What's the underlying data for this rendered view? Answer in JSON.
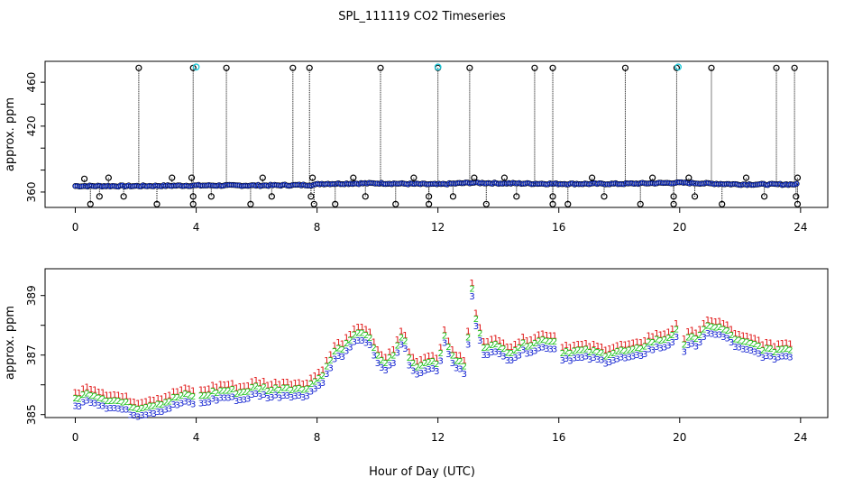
{
  "title": "SPL_111119  CO2 Timeseries",
  "colors": {
    "axis": "#000000",
    "raw_outer": "#000000",
    "raw_inner": "#1f3fe0",
    "flag": "#22c8d8",
    "series1": "#e01010",
    "series2": "#18c018",
    "series3": "#1020d0"
  },
  "chart_data": [
    {
      "type": "scatter",
      "name": "top-panel",
      "title": "SPL_111119  CO2 Timeseries",
      "xlabel": "",
      "ylabel": "approx. ppm",
      "xlim": [
        -1,
        24.9
      ],
      "ylim": [
        346,
        479
      ],
      "x_ticks": [
        0,
        4,
        8,
        12,
        16,
        20,
        24
      ],
      "y_ticks": [
        360,
        380,
        400,
        420,
        440,
        460
      ],
      "y_tick_labels": [
        "360",
        "420",
        "460"
      ],
      "x_tick_labels": [
        "0",
        "4",
        "8",
        "12",
        "16",
        "20",
        "24"
      ],
      "base_series": {
        "x": [
          0,
          2,
          4,
          6,
          7.9,
          8.1,
          10,
          12,
          13.1,
          14,
          16,
          18,
          20,
          22,
          24
        ],
        "y": [
          365.5,
          365.5,
          366,
          366,
          366.5,
          367.5,
          368,
          367,
          368.5,
          368,
          367.5,
          367.5,
          368.5,
          367,
          367
        ]
      },
      "high_spikes_x": [
        2.1,
        3.9,
        5.0,
        7.2,
        7.75,
        10.1,
        12.0,
        13.05,
        15.2,
        15.8,
        18.2,
        19.9,
        21.05,
        23.2,
        23.8
      ],
      "high_spike_value": 473,
      "flagged_x": [
        4.0,
        12.0,
        19.95
      ],
      "low_outliers": {
        "x": [
          0.5,
          2.7,
          3.9,
          5.8,
          7.9,
          8.6,
          10.6,
          11.7,
          13.6,
          15.8,
          16.3,
          18.7,
          19.8,
          21.4,
          23.9
        ],
        "y": [
          349,
          349,
          349,
          349,
          349,
          349,
          349,
          349,
          349,
          349,
          349,
          349,
          349,
          349,
          349
        ]
      },
      "mid_outliers": {
        "x": [
          0.8,
          1.6,
          3.9,
          4.5,
          6.5,
          7.8,
          9.6,
          11.7,
          12.5,
          14.6,
          15.8,
          17.5,
          19.8,
          20.5,
          22.8,
          23.85
        ],
        "y": [
          356,
          356,
          356,
          356,
          356,
          356,
          356,
          356,
          356,
          356,
          356,
          356,
          356,
          356,
          356,
          356
        ]
      },
      "up_outliers": {
        "x": [
          0.3,
          1.1,
          3.2,
          3.85,
          6.2,
          7.85,
          9.2,
          11.2,
          13.2,
          14.2,
          17.1,
          19.1,
          20.3,
          22.2,
          23.9
        ],
        "y": [
          372,
          373,
          373,
          373,
          373,
          373,
          373,
          373,
          373,
          373,
          373,
          373,
          373,
          373,
          373
        ]
      }
    },
    {
      "type": "scatter",
      "name": "bottom-panel",
      "xlabel": "Hour of Day (UTC)",
      "ylabel": "approx. ppm",
      "xlim": [
        -1,
        24.9
      ],
      "ylim": [
        384.9,
        389.9
      ],
      "x_ticks": [
        0,
        4,
        8,
        12,
        16,
        20,
        24
      ],
      "x_tick_labels": [
        "0",
        "4",
        "8",
        "12",
        "16",
        "20",
        "24"
      ],
      "y_ticks": [
        385,
        386,
        387,
        388,
        389
      ],
      "y_tick_labels": [
        "385",
        "387",
        "389"
      ],
      "symbols": [
        "1",
        "2",
        "3"
      ],
      "series": [
        {
          "name": "3",
          "x": [
            0,
            0.5,
            1,
            1.5,
            2,
            2.5,
            3,
            3.5,
            3.95,
            4.0,
            4.5,
            5,
            5.5,
            6,
            6.5,
            7,
            7.5,
            7.95,
            8.0,
            8.3,
            8.6,
            9,
            9.4,
            9.7,
            10,
            10.3,
            10.6,
            10.85,
            11.1,
            11.4,
            11.7,
            12.0,
            12.2,
            12.4,
            12.7,
            12.95,
            13.1,
            13.3,
            13.55,
            13.8,
            14,
            14.4,
            14.8,
            15.2,
            15.6,
            15.95,
            16.0,
            16.5,
            17,
            17.5,
            18,
            18.5,
            19,
            19.5,
            19.95,
            20.0,
            20.3,
            20.6,
            21,
            21.5,
            22,
            22.5,
            23,
            23.5,
            23.7
          ],
          "y": [
            385.3,
            385.5,
            385.3,
            385.2,
            385.0,
            385.1,
            385.2,
            385.4,
            385.4,
            385.3,
            385.5,
            385.6,
            385.5,
            385.7,
            385.6,
            385.7,
            385.6,
            385.9,
            385.9,
            386.3,
            386.9,
            387.1,
            387.6,
            387.4,
            386.7,
            386.5,
            386.9,
            387.5,
            386.5,
            386.4,
            386.6,
            386.5,
            387.4,
            386.9,
            386.5,
            386.4,
            389.2,
            387.7,
            387.0,
            387.2,
            387.0,
            386.9,
            387.1,
            387.2,
            387.3,
            387.2,
            386.9,
            386.9,
            386.9,
            386.8,
            386.9,
            386.9,
            387.2,
            387.3,
            387.6,
            386.6,
            387.5,
            387.3,
            387.8,
            387.6,
            387.2,
            387.1,
            386.9,
            387.0,
            387.0
          ]
        }
      ],
      "offsets": {
        "1": 0.45,
        "2": 0.25,
        "3": 0.0
      }
    }
  ]
}
